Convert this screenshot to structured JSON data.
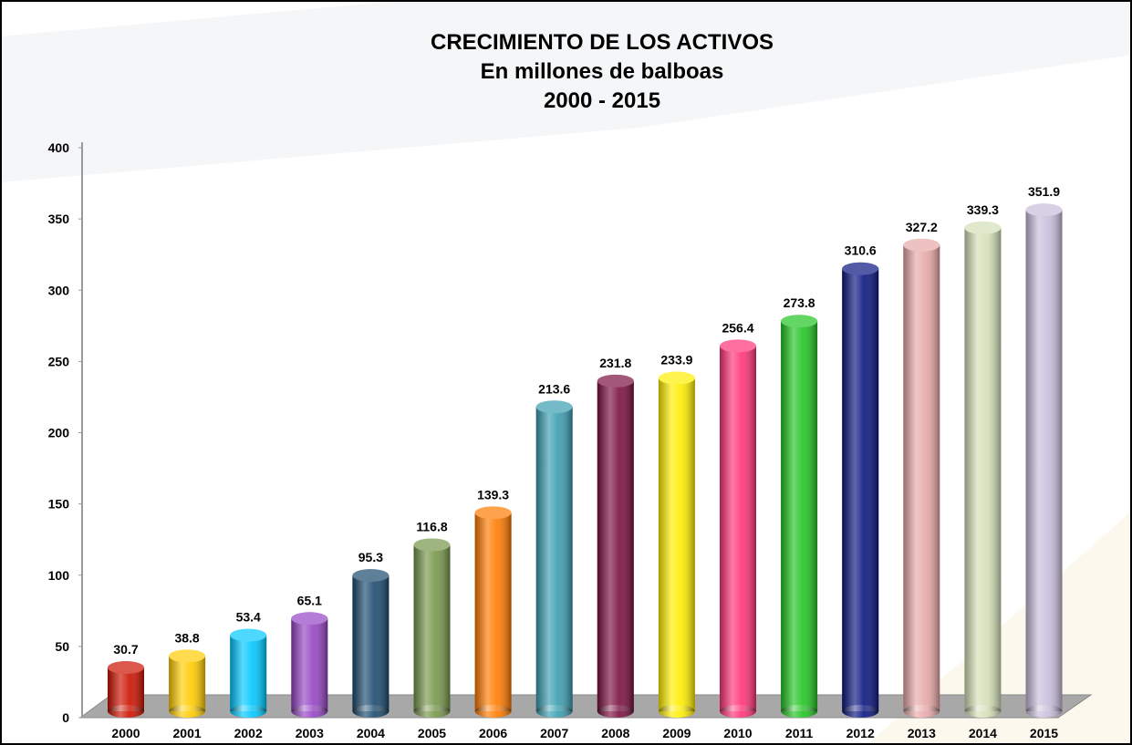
{
  "chart_data": {
    "type": "bar",
    "title": "CRECIMIENTO DE LOS ACTIVOS",
    "subtitle": [
      "En millones de balboas",
      "2000 - 2015"
    ],
    "categories": [
      "2000",
      "2001",
      "2002",
      "2003",
      "2004",
      "2005",
      "2006",
      "2007",
      "2008",
      "2009",
      "2010",
      "2011",
      "2012",
      "2013",
      "2014",
      "2015"
    ],
    "values": [
      30.7,
      38.8,
      53.4,
      65.1,
      95.3,
      116.8,
      139.3,
      213.6,
      231.8,
      233.9,
      256.4,
      273.8,
      310.6,
      327.2,
      339.3,
      351.9
    ],
    "colors": [
      "#cc1100",
      "#ffcc00",
      "#00c8ff",
      "#9444c4",
      "#1b4a6e",
      "#76964a",
      "#ff7a00",
      "#3a9db0",
      "#7a1040",
      "#ffee00",
      "#ff3377",
      "#22c422",
      "#0a1580",
      "#e8a8a8",
      "#d4e0b8",
      "#c8bedc"
    ],
    "ylim": [
      0,
      400
    ],
    "yticks": [
      0,
      50,
      100,
      150,
      200,
      250,
      300,
      350,
      400
    ],
    "grid": false
  }
}
